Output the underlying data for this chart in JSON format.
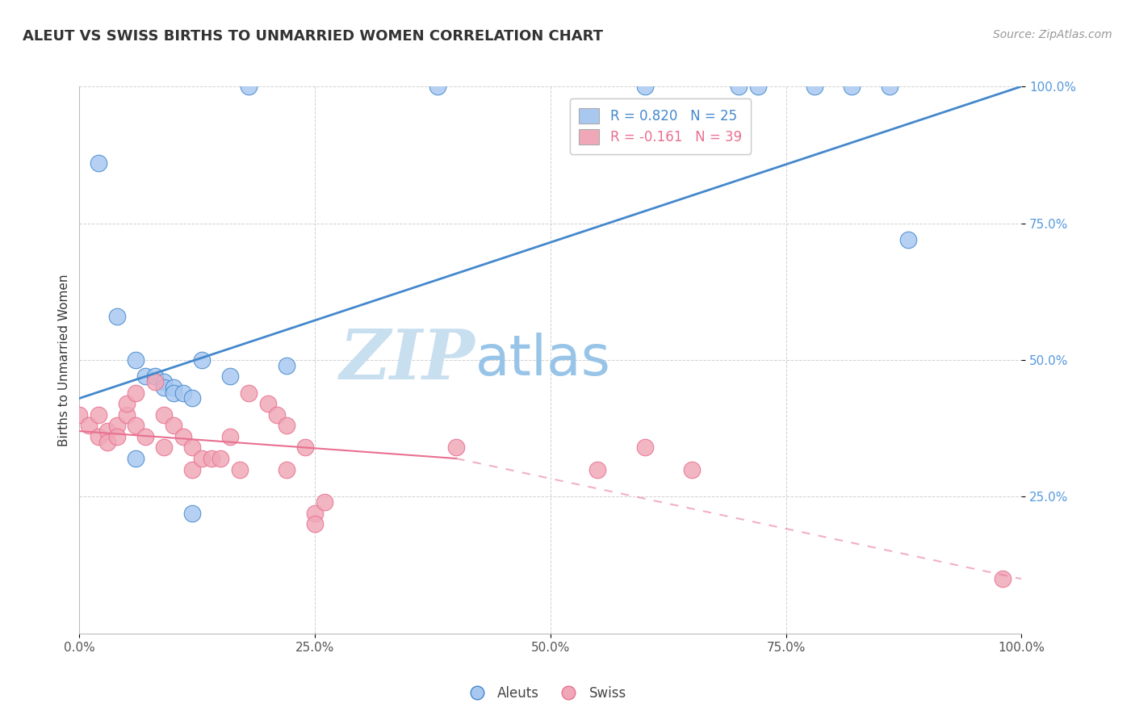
{
  "title": "ALEUT VS SWISS BIRTHS TO UNMARRIED WOMEN CORRELATION CHART",
  "source": "Source: ZipAtlas.com",
  "ylabel": "Births to Unmarried Women",
  "xlim": [
    0.0,
    1.0
  ],
  "ylim": [
    0.0,
    1.0
  ],
  "ytick_labels": [
    "25.0%",
    "50.0%",
    "75.0%",
    "100.0%"
  ],
  "ytick_values": [
    0.25,
    0.5,
    0.75,
    1.0
  ],
  "xtick_labels": [
    "0.0%",
    "25.0%",
    "50.0%",
    "75.0%",
    "100.0%"
  ],
  "xtick_values": [
    0.0,
    0.25,
    0.5,
    0.75,
    1.0
  ],
  "aleut_R": 0.82,
  "aleut_N": 25,
  "swiss_R": -0.161,
  "swiss_N": 39,
  "aleut_color": "#a8c8f0",
  "swiss_color": "#f0a8b8",
  "aleut_line_color": "#4488cc",
  "swiss_line_color": "#e87090",
  "watermark_zip": "ZIP",
  "watermark_atlas": "atlas",
  "watermark_color_zip": "#c8dff0",
  "watermark_color_atlas": "#98c4e8",
  "background_color": "#ffffff",
  "grid_color": "#cccccc",
  "aleut_points": [
    [
      0.02,
      0.86
    ],
    [
      0.18,
      1.0
    ],
    [
      0.38,
      1.0
    ],
    [
      0.6,
      1.0
    ],
    [
      0.7,
      1.0
    ],
    [
      0.72,
      1.0
    ],
    [
      0.78,
      1.0
    ],
    [
      0.82,
      1.0
    ],
    [
      0.86,
      1.0
    ],
    [
      0.04,
      0.58
    ],
    [
      0.06,
      0.5
    ],
    [
      0.07,
      0.47
    ],
    [
      0.08,
      0.47
    ],
    [
      0.09,
      0.46
    ],
    [
      0.09,
      0.45
    ],
    [
      0.1,
      0.45
    ],
    [
      0.1,
      0.44
    ],
    [
      0.11,
      0.44
    ],
    [
      0.12,
      0.43
    ],
    [
      0.13,
      0.5
    ],
    [
      0.16,
      0.47
    ],
    [
      0.22,
      0.49
    ],
    [
      0.88,
      0.72
    ],
    [
      0.06,
      0.32
    ],
    [
      0.12,
      0.22
    ]
  ],
  "swiss_points": [
    [
      0.0,
      0.4
    ],
    [
      0.01,
      0.38
    ],
    [
      0.02,
      0.4
    ],
    [
      0.02,
      0.36
    ],
    [
      0.03,
      0.37
    ],
    [
      0.03,
      0.35
    ],
    [
      0.04,
      0.38
    ],
    [
      0.04,
      0.36
    ],
    [
      0.05,
      0.4
    ],
    [
      0.05,
      0.42
    ],
    [
      0.06,
      0.44
    ],
    [
      0.06,
      0.38
    ],
    [
      0.07,
      0.36
    ],
    [
      0.08,
      0.46
    ],
    [
      0.09,
      0.4
    ],
    [
      0.09,
      0.34
    ],
    [
      0.1,
      0.38
    ],
    [
      0.11,
      0.36
    ],
    [
      0.12,
      0.34
    ],
    [
      0.12,
      0.3
    ],
    [
      0.13,
      0.32
    ],
    [
      0.14,
      0.32
    ],
    [
      0.15,
      0.32
    ],
    [
      0.16,
      0.36
    ],
    [
      0.17,
      0.3
    ],
    [
      0.18,
      0.44
    ],
    [
      0.2,
      0.42
    ],
    [
      0.21,
      0.4
    ],
    [
      0.22,
      0.38
    ],
    [
      0.22,
      0.3
    ],
    [
      0.24,
      0.34
    ],
    [
      0.25,
      0.22
    ],
    [
      0.25,
      0.2
    ],
    [
      0.26,
      0.24
    ],
    [
      0.4,
      0.34
    ],
    [
      0.55,
      0.3
    ],
    [
      0.6,
      0.34
    ],
    [
      0.65,
      0.3
    ],
    [
      0.98,
      0.1
    ]
  ],
  "aleut_line_x0": 0.0,
  "aleut_line_y0": 0.43,
  "aleut_line_x1": 1.0,
  "aleut_line_y1": 1.0,
  "swiss_line_x0": 0.0,
  "swiss_line_y0": 0.37,
  "swiss_line_x1_solid": 0.4,
  "swiss_line_y1_solid": 0.32,
  "swiss_line_x1_dash": 1.0,
  "swiss_line_y1_dash": 0.1
}
